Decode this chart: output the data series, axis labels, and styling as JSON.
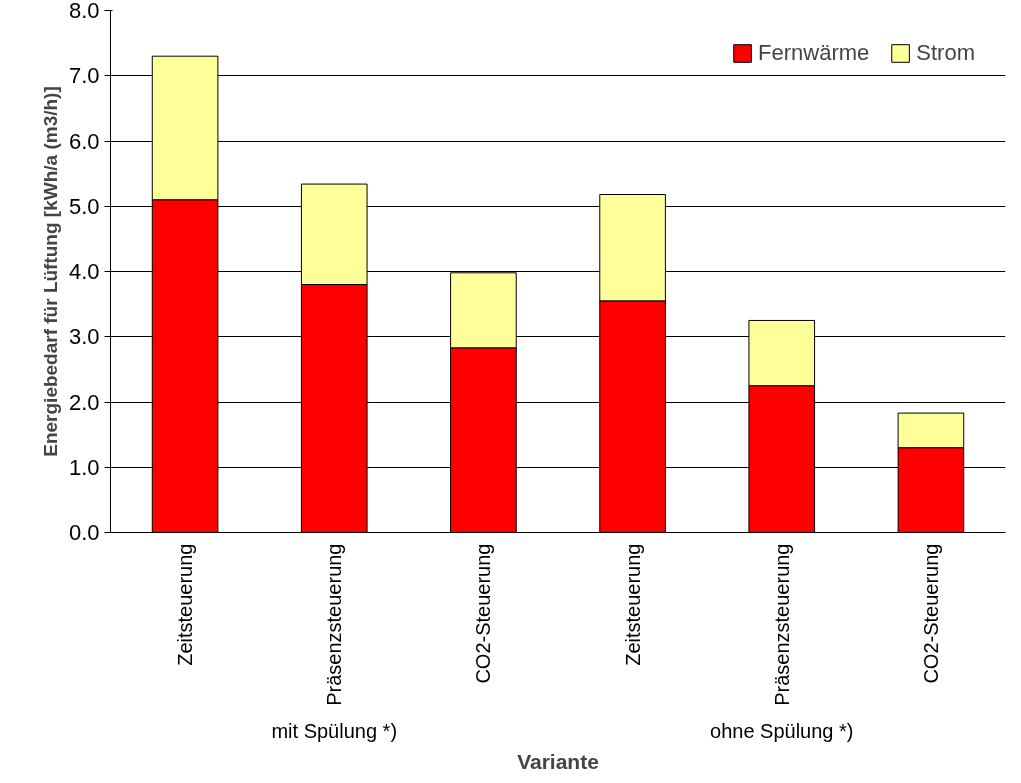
{
  "chart_data": {
    "type": "bar",
    "stacked": true,
    "xlabel": "Variante",
    "ylabel": "Energiebedarf für Lüftung [kWh/a (m3/h)]",
    "categories": [
      "Zeitsteuerung",
      "Präsenzsteuerung",
      "CO2-Steuerung",
      "Zeitsteuerung",
      "Präsenzsteuerung",
      "CO2-Steuerung"
    ],
    "series": [
      {
        "name": "Fernwärme",
        "color": "#ff0000",
        "values": [
          5.1,
          3.8,
          2.83,
          3.55,
          2.25,
          1.3
        ]
      },
      {
        "name": "Strom",
        "color": "#ffff99",
        "values": [
          2.2,
          1.54,
          1.15,
          1.63,
          1.0,
          0.53
        ]
      }
    ],
    "ylim": [
      0,
      8
    ],
    "yticks": [
      {
        "value": 0,
        "label": "0.0"
      },
      {
        "value": 1,
        "label": "1.0"
      },
      {
        "value": 2,
        "label": "2.0"
      },
      {
        "value": 3,
        "label": "3.0"
      },
      {
        "value": 4,
        "label": "4.0"
      },
      {
        "value": 5,
        "label": "5.0"
      },
      {
        "value": 6,
        "label": "6.0"
      },
      {
        "value": 7,
        "label": "7.0"
      },
      {
        "value": 8,
        "label": "8.0"
      }
    ],
    "grid": "y",
    "legend": "top right",
    "annotations": [
      "mit Spülung *)",
      "ohne Spülung *)"
    ]
  }
}
